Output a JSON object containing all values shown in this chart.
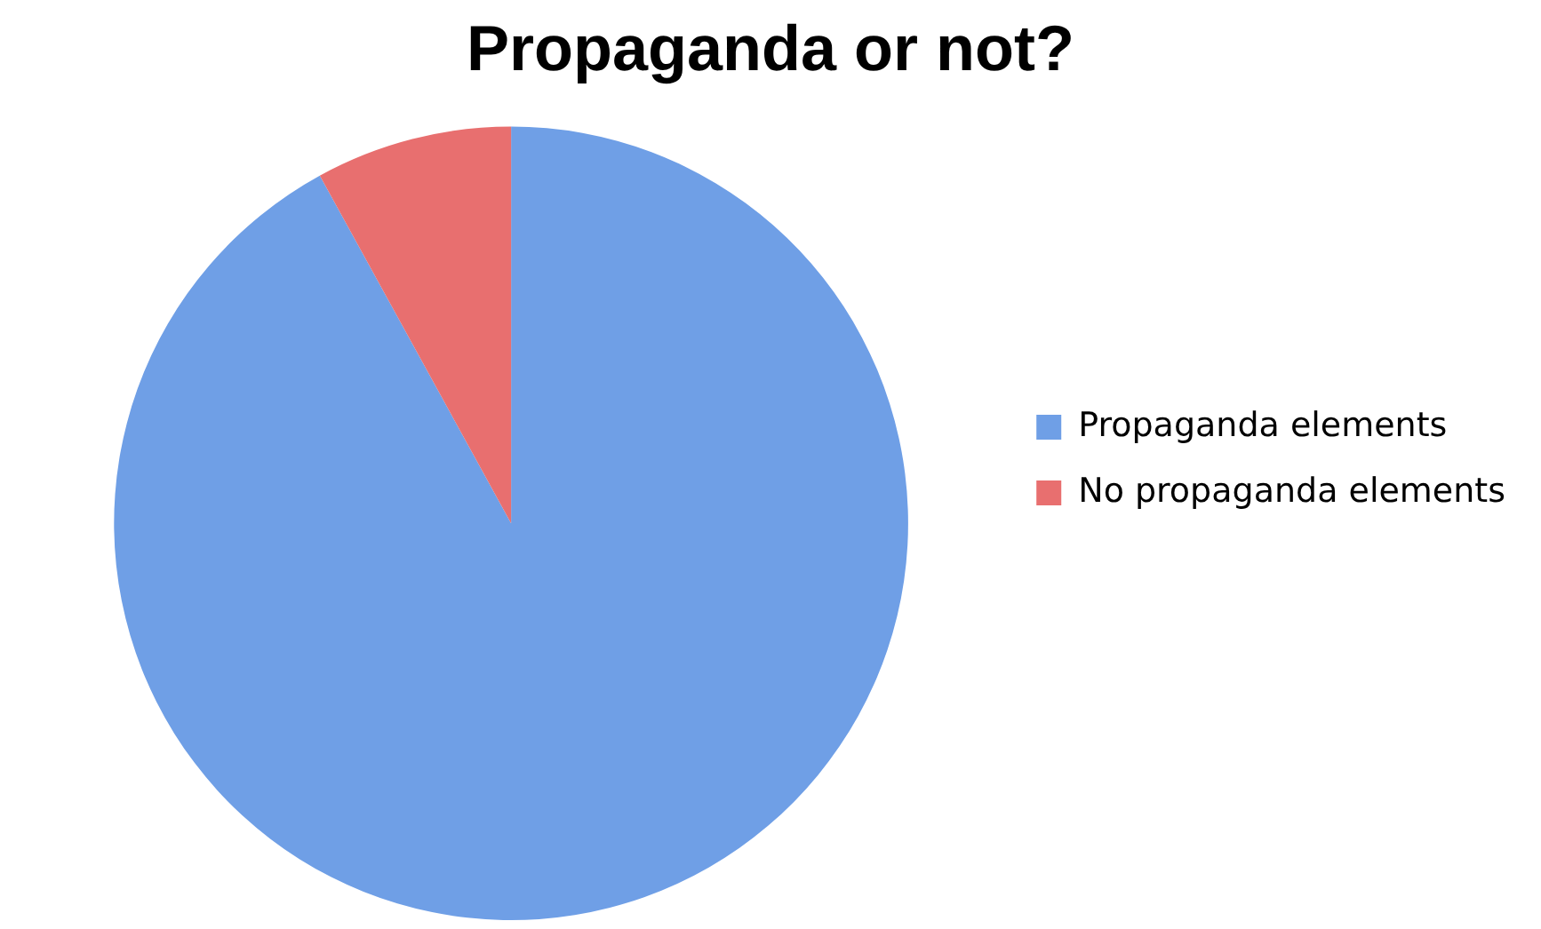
{
  "chart_data": {
    "type": "pie",
    "title": "Propaganda or not?",
    "categories": [
      "Propaganda elements",
      "No propaganda elements"
    ],
    "values": [
      92,
      8
    ],
    "colors": [
      "#6f9fe6",
      "#e86f6f"
    ],
    "legend": "right"
  }
}
